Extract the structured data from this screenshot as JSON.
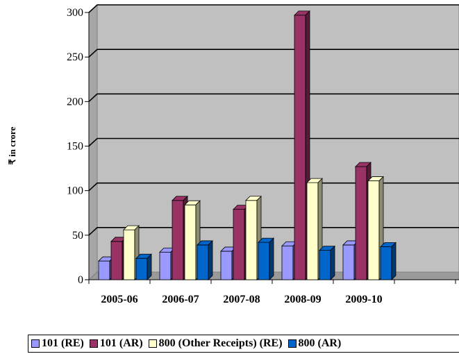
{
  "chart_data": {
    "type": "bar",
    "title": "",
    "xlabel": "",
    "ylabel": "₹ in crore",
    "ylim": [
      0,
      300
    ],
    "yticks": [
      "0",
      "50",
      "100",
      "150",
      "200",
      "250",
      "300"
    ],
    "grid": true,
    "legend_position": "bottom",
    "categories": [
      "2005-06",
      "2006-07",
      "2007-08",
      "2008-09",
      "2009-10"
    ],
    "series": [
      {
        "name": "101 (RE)",
        "color": "#9999ff",
        "values": [
          21,
          31,
          32,
          38,
          39
        ]
      },
      {
        "name": "101 (AR)",
        "color": "#993366",
        "values": [
          43,
          89,
          79,
          297,
          127
        ]
      },
      {
        "name": "800 (Other Receipts) (RE)",
        "color": "#ffffcc",
        "values": [
          56,
          84,
          89,
          109,
          111
        ]
      },
      {
        "name": "800 (AR)",
        "color": "#0066cc",
        "values": [
          24,
          39,
          42,
          33,
          37
        ]
      }
    ]
  }
}
